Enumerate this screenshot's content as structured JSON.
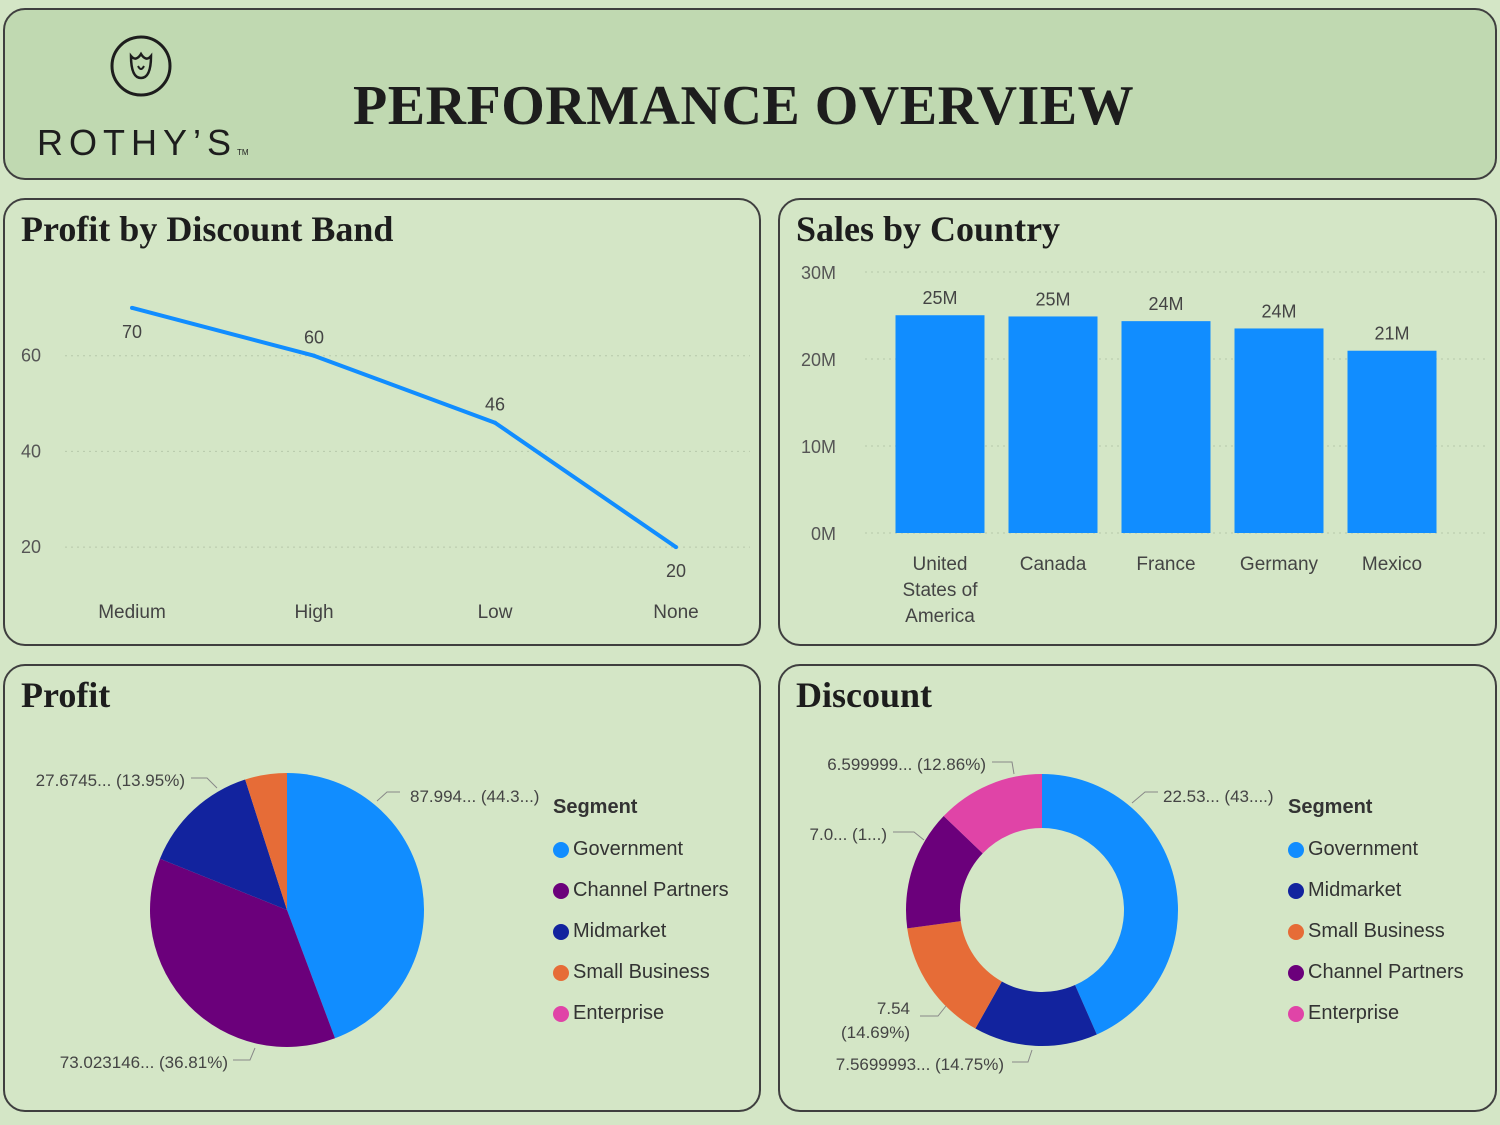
{
  "header": {
    "logo_text": "ROTHY’S",
    "logo_tm": "TM",
    "title": "PERFORMANCE OVERVIEW"
  },
  "chart_data": [
    {
      "id": "profit_by_discount",
      "type": "line",
      "title": "Profit by Discount Band",
      "categories": [
        "Medium",
        "High",
        "Low",
        "None"
      ],
      "values": [
        70,
        60,
        46,
        20
      ],
      "data_labels": [
        "70",
        "60",
        "46",
        "20"
      ],
      "yticks": [
        "20",
        "40",
        "60"
      ],
      "ylim": [
        10,
        80
      ],
      "grid": true,
      "color": "#118dff"
    },
    {
      "id": "sales_by_country",
      "type": "bar",
      "title": "Sales by Country",
      "categories": [
        "United States of America",
        "Canada",
        "France",
        "Germany",
        "Mexico"
      ],
      "category_lines": [
        [
          "United",
          "States of",
          "America"
        ],
        [
          "Canada"
        ],
        [
          "France"
        ],
        [
          "Germany"
        ],
        [
          "Mexico"
        ]
      ],
      "values": [
        25.03,
        24.89,
        24.35,
        23.51,
        20.95
      ],
      "data_labels": [
        "25M",
        "25M",
        "24M",
        "24M",
        "21M"
      ],
      "yticks": [
        "0M",
        "10M",
        "20M",
        "30M"
      ],
      "ylim": [
        0,
        30
      ],
      "grid": true,
      "color": "#118dff"
    },
    {
      "id": "profit_pie",
      "type": "pie",
      "title": "Profit",
      "legend_title": "Segment",
      "slices": [
        {
          "name": "Government",
          "value": 44.3,
          "color": "#118dff",
          "label": "87.994... (44.3...)"
        },
        {
          "name": "Channel Partners",
          "value": 36.81,
          "color": "#6b007b",
          "label": "73.023146... (36.81%)"
        },
        {
          "name": "Midmarket",
          "value": 13.95,
          "color": "#12239e",
          "label": "27.6745... (13.95%)"
        },
        {
          "name": "Small Business",
          "value": 4.94,
          "color": "#e66c37",
          "label": ""
        },
        {
          "name": "Enterprise",
          "value": 0,
          "color": "#e044a7",
          "label": ""
        }
      ],
      "slice_order": [
        "Government",
        "Channel Partners",
        "Midmarket",
        "Small Business"
      ],
      "legend_order": [
        "Government",
        "Channel Partners",
        "Midmarket",
        "Small Business",
        "Enterprise"
      ]
    },
    {
      "id": "discount_donut",
      "type": "pie",
      "title": "Discount",
      "legend_title": "Segment",
      "slices": [
        {
          "name": "Government",
          "value": 43.4,
          "color": "#118dff",
          "label": "22.53... (43....)"
        },
        {
          "name": "Midmarket",
          "value": 14.75,
          "color": "#12239e",
          "label": "7.5699993... (14.75%)"
        },
        {
          "name": "Small Business",
          "value": 14.69,
          "color": "#e66c37",
          "label": "7.54 (14.69%)"
        },
        {
          "name": "Channel Partners",
          "value": 14.3,
          "color": "#6b007b",
          "label": "7.0... (1...)"
        },
        {
          "name": "Enterprise",
          "value": 12.86,
          "color": "#e044a7",
          "label": "6.599999... (12.86%)"
        }
      ],
      "legend_order": [
        "Government",
        "Midmarket",
        "Small Business",
        "Channel Partners",
        "Enterprise"
      ]
    }
  ]
}
